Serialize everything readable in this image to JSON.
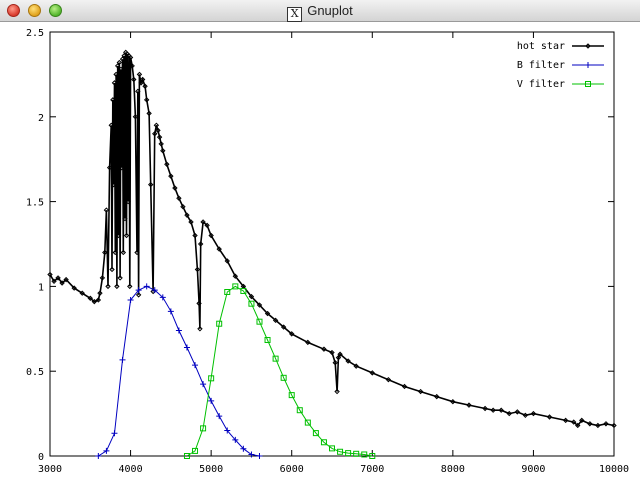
{
  "window": {
    "title": "Gnuplot",
    "x_icon": "X",
    "controls": [
      {
        "name": "close-button",
        "color": "#d83a2c"
      },
      {
        "name": "minimize-button",
        "color": "#e0a21c"
      },
      {
        "name": "zoom-button",
        "color": "#52b52c"
      }
    ]
  },
  "chart_data": {
    "type": "line",
    "title": "",
    "xlabel": "",
    "ylabel": "",
    "xlim": [
      3000,
      10000
    ],
    "ylim": [
      0,
      2.5
    ],
    "x_ticks": [
      3000,
      4000,
      5000,
      6000,
      7000,
      8000,
      9000,
      10000
    ],
    "y_ticks": [
      0,
      0.5,
      1,
      1.5,
      2,
      2.5
    ],
    "x_tick_labels": [
      "3000",
      "4000",
      "5000",
      "6000",
      "7000",
      "8000",
      "9000",
      "10000"
    ],
    "y_tick_labels": [
      "0",
      "0.5",
      "1",
      "1.5",
      "2",
      "2.5"
    ],
    "grid": false,
    "legend_position": "top-right",
    "series": [
      {
        "name": "hot star",
        "color": "#000000",
        "marker": "diamond",
        "x": [
          3000,
          3050,
          3100,
          3150,
          3200,
          3300,
          3400,
          3500,
          3550,
          3600,
          3620,
          3650,
          3680,
          3700,
          3720,
          3740,
          3760,
          3770,
          3780,
          3790,
          3800,
          3810,
          3820,
          3830,
          3840,
          3850,
          3860,
          3870,
          3880,
          3890,
          3900,
          3910,
          3920,
          3930,
          3940,
          3950,
          3960,
          3970,
          3980,
          3990,
          4000,
          4020,
          4040,
          4060,
          4080,
          4090,
          4100,
          4110,
          4130,
          4150,
          4180,
          4200,
          4230,
          4250,
          4280,
          4300,
          4320,
          4340,
          4360,
          4380,
          4400,
          4450,
          4500,
          4550,
          4600,
          4650,
          4700,
          4750,
          4800,
          4830,
          4850,
          4861,
          4870,
          4900,
          4950,
          5000,
          5100,
          5200,
          5300,
          5400,
          5500,
          5600,
          5700,
          5800,
          5900,
          6000,
          6200,
          6400,
          6500,
          6540,
          6563,
          6580,
          6600,
          6700,
          6800,
          7000,
          7200,
          7400,
          7600,
          7800,
          8000,
          8200,
          8400,
          8500,
          8600,
          8700,
          8800,
          8900,
          9000,
          9200,
          9400,
          9500,
          9550,
          9600,
          9700,
          9800,
          9900,
          10000
        ],
        "values": [
          1.07,
          1.03,
          1.05,
          1.02,
          1.04,
          0.99,
          0.96,
          0.93,
          0.91,
          0.92,
          0.96,
          1.05,
          1.2,
          1.45,
          1.0,
          1.7,
          1.95,
          1.1,
          2.1,
          1.6,
          2.2,
          1.2,
          2.25,
          1.0,
          2.3,
          1.3,
          2.32,
          1.05,
          2.28,
          1.7,
          2.34,
          1.2,
          2.36,
          1.4,
          2.38,
          1.3,
          2.37,
          1.5,
          2.36,
          1.0,
          2.35,
          2.3,
          2.22,
          2.0,
          1.2,
          2.15,
          0.95,
          2.25,
          2.2,
          2.22,
          2.18,
          2.1,
          2.02,
          1.6,
          0.97,
          1.9,
          1.95,
          1.92,
          1.88,
          1.84,
          1.8,
          1.72,
          1.65,
          1.58,
          1.52,
          1.47,
          1.42,
          1.38,
          1.3,
          1.1,
          0.9,
          0.75,
          1.25,
          1.38,
          1.36,
          1.3,
          1.22,
          1.15,
          1.06,
          1.0,
          0.94,
          0.89,
          0.84,
          0.8,
          0.76,
          0.72,
          0.67,
          0.63,
          0.61,
          0.55,
          0.38,
          0.58,
          0.6,
          0.56,
          0.53,
          0.49,
          0.45,
          0.41,
          0.38,
          0.35,
          0.32,
          0.3,
          0.28,
          0.27,
          0.27,
          0.25,
          0.26,
          0.24,
          0.25,
          0.23,
          0.21,
          0.2,
          0.18,
          0.21,
          0.19,
          0.18,
          0.19,
          0.18
        ]
      },
      {
        "name": "B filter",
        "color": "#0000c0",
        "marker": "plus",
        "x": [
          3600,
          3700,
          3800,
          3900,
          4000,
          4100,
          4200,
          4300,
          4400,
          4500,
          4600,
          4700,
          4800,
          4900,
          5000,
          5100,
          5200,
          5300,
          5400,
          5500,
          5600
        ],
        "values": [
          0.0,
          0.03,
          0.134,
          0.567,
          0.92,
          0.978,
          1.0,
          0.978,
          0.935,
          0.853,
          0.74,
          0.64,
          0.536,
          0.424,
          0.325,
          0.235,
          0.15,
          0.095,
          0.043,
          0.009,
          0.0
        ]
      },
      {
        "name": "V filter",
        "color": "#00c000",
        "marker": "square",
        "x": [
          4700,
          4800,
          4900,
          5000,
          5100,
          5200,
          5300,
          5400,
          5500,
          5600,
          5700,
          5800,
          5900,
          6000,
          6100,
          6200,
          6300,
          6400,
          6500,
          6600,
          6700,
          6800,
          6900,
          7000
        ],
        "values": [
          0.0,
          0.03,
          0.163,
          0.458,
          0.78,
          0.967,
          1.0,
          0.973,
          0.898,
          0.792,
          0.684,
          0.574,
          0.461,
          0.359,
          0.27,
          0.197,
          0.135,
          0.081,
          0.045,
          0.025,
          0.017,
          0.013,
          0.009,
          0.0
        ]
      }
    ]
  }
}
